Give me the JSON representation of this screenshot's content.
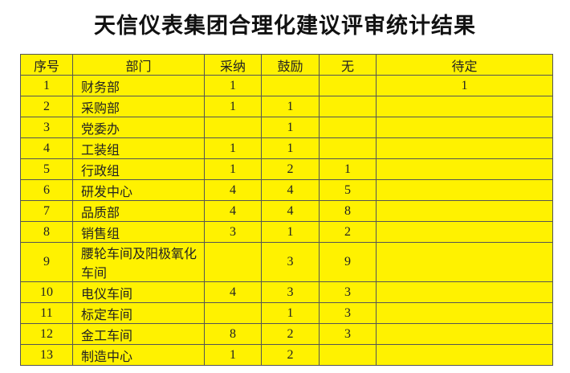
{
  "title": "天信仪表集团合理化建议评审统计结果",
  "colors": {
    "table_bg": "#fff200",
    "border": "#555555"
  },
  "headers": [
    "序号",
    "部门",
    "采纳",
    "鼓励",
    "无",
    "待定"
  ],
  "rows": [
    [
      "1",
      "财务部",
      "1",
      "",
      "",
      "1"
    ],
    [
      "2",
      "采购部",
      "1",
      "1",
      "",
      ""
    ],
    [
      "3",
      "党委办",
      "",
      "1",
      "",
      ""
    ],
    [
      "4",
      "工装组",
      "1",
      "1",
      "",
      ""
    ],
    [
      "5",
      "行政组",
      "1",
      "2",
      "1",
      ""
    ],
    [
      "6",
      "研发中心",
      "4",
      "4",
      "5",
      ""
    ],
    [
      "7",
      "品质部",
      "4",
      "4",
      "8",
      ""
    ],
    [
      "8",
      "销售组",
      "3",
      "1",
      "2",
      ""
    ],
    [
      "9",
      "腰轮车间及阳极氧化车间",
      "",
      "3",
      "9",
      ""
    ],
    [
      "10",
      "电仪车间",
      "4",
      "3",
      "3",
      ""
    ],
    [
      "11",
      "标定车间",
      "",
      "1",
      "3",
      ""
    ],
    [
      "12",
      "金工车间",
      "8",
      "2",
      "3",
      ""
    ],
    [
      "13",
      "制造中心",
      "1",
      "2",
      "",
      ""
    ]
  ]
}
